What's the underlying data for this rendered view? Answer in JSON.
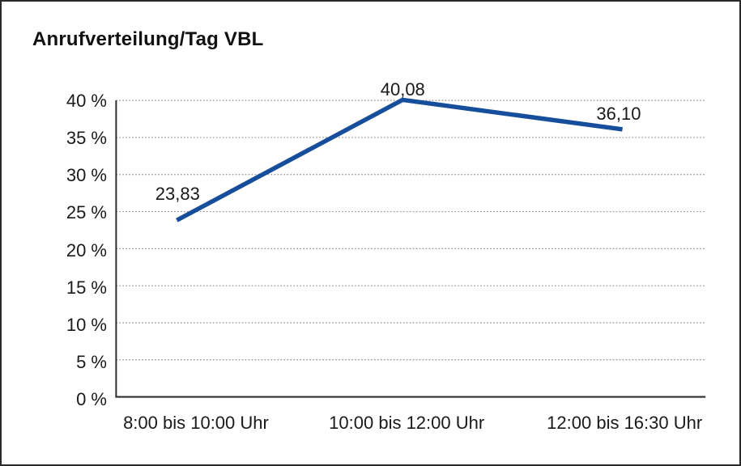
{
  "chart_data": {
    "type": "line",
    "title": "Anrufverteilung/Tag VBL",
    "categories": [
      "8:00 bis 10:00 Uhr",
      "10:00 bis 12:00 Uhr",
      "12:00 bis 16:30 Uhr"
    ],
    "values": [
      23.83,
      40.08,
      36.1
    ],
    "point_labels": [
      "23,83",
      "40,08",
      "36,10"
    ],
    "xlabel": "",
    "ylabel": "",
    "ylim": [
      0,
      40
    ],
    "ytick_values": [
      0,
      5,
      10,
      15,
      20,
      25,
      30,
      35,
      40
    ],
    "ytick_labels": [
      "0 %",
      "5 %",
      "10 %",
      "15 %",
      "20 %",
      "25 %",
      "30 %",
      "35 %",
      "40 %"
    ],
    "grid": "horizontal-dotted",
    "legend": "none",
    "colors": {
      "line": "#164e9b",
      "gridline": "#8c8c8c",
      "axis": "#2e2e2e",
      "text": "#1a1a1a"
    }
  }
}
